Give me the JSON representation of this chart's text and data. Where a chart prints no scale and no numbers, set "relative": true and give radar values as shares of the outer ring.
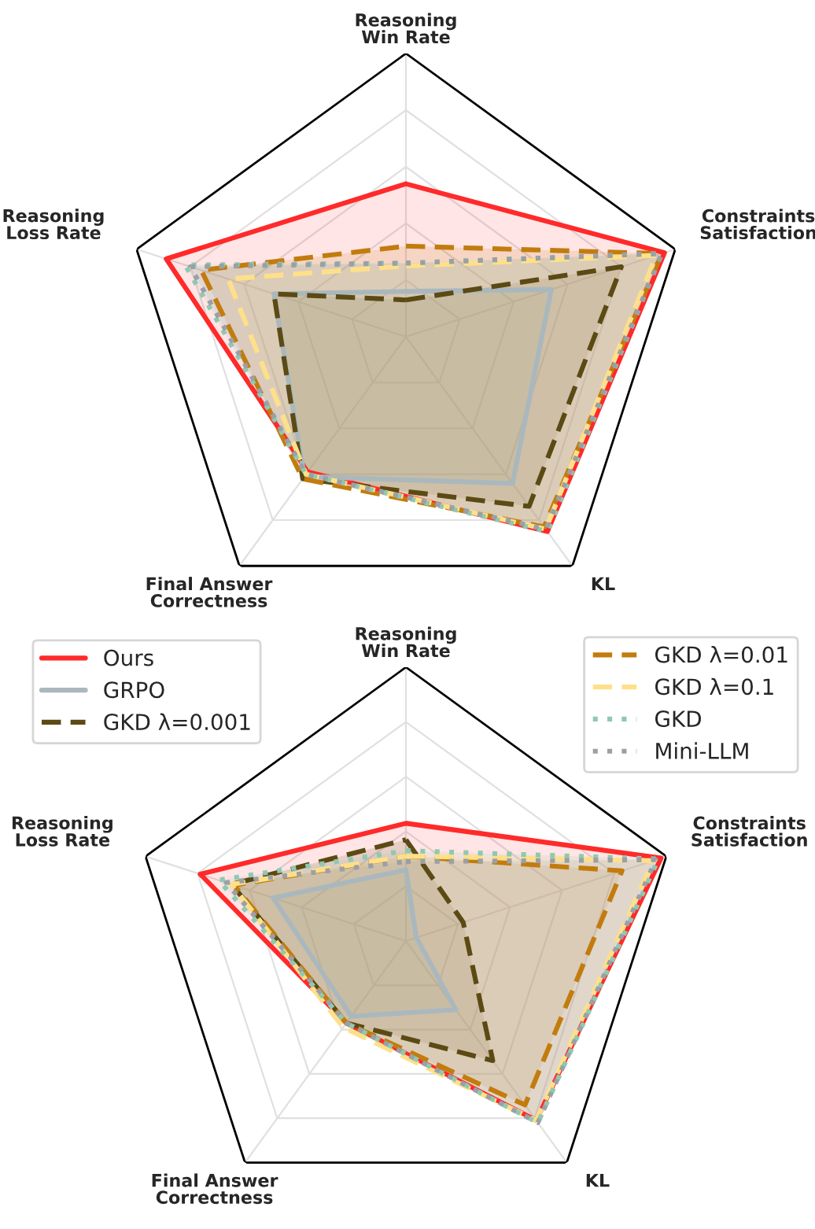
{
  "chart_data": [
    {
      "type": "radar",
      "relative": true,
      "grid": true,
      "legend": "bottom",
      "categories": [
        "Reasoning\nWin Rate",
        "Constraints\nSatisfaction",
        "KL",
        "Final Answer\nCorrectness",
        "Reasoning\nLoss Rate"
      ],
      "series": [
        {
          "name": "Ours",
          "color": "#ff2a2a",
          "line_style": "solid",
          "values": [
            0.54,
            0.96,
            0.85,
            0.59,
            0.89
          ]
        },
        {
          "name": "GRPO",
          "color": "#aab8bd",
          "line_style": "solid",
          "values": [
            0.16,
            0.54,
            0.64,
            0.61,
            0.49
          ]
        },
        {
          "name": "GKD λ=0.001",
          "color": "#5c4a14",
          "line_style": "dashed",
          "values": [
            0.13,
            0.8,
            0.74,
            0.62,
            0.49
          ]
        },
        {
          "name": "GKD λ=0.01",
          "color": "#c27c0e",
          "line_style": "dashed",
          "values": [
            0.32,
            0.95,
            0.83,
            0.62,
            0.76
          ]
        },
        {
          "name": "GKD λ=0.1",
          "color": "#ffe08a",
          "line_style": "dashed",
          "values": [
            0.25,
            0.93,
            0.84,
            0.6,
            0.66
          ]
        },
        {
          "name": "GKD",
          "color": "#8fc9b0",
          "line_style": "dotted",
          "values": [
            0.26,
            0.95,
            0.85,
            0.6,
            0.82
          ]
        },
        {
          "name": "Mini-LLM",
          "color": "#9aa0a6",
          "line_style": "dotted",
          "values": [
            0.26,
            0.95,
            0.84,
            0.6,
            0.8
          ]
        }
      ]
    },
    {
      "type": "radar",
      "relative": true,
      "grid": true,
      "categories": [
        "Reasoning\nWin Rate",
        "Constraints\nSatisfaction",
        "KL",
        "Final Answer\nCorrectness",
        "Reasoning\nLoss Rate"
      ],
      "series": [
        {
          "color": "#ff2a2a",
          "line_style": "solid",
          "values": [
            0.43,
            0.98,
            0.81,
            0.37,
            0.79
          ]
        },
        {
          "color": "#aab8bd",
          "line_style": "solid",
          "values": [
            0.26,
            0.04,
            0.31,
            0.34,
            0.51
          ]
        },
        {
          "color": "#5c4a14",
          "line_style": "dashed",
          "values": [
            0.37,
            0.22,
            0.54,
            0.37,
            0.67
          ]
        },
        {
          "color": "#c27c0e",
          "line_style": "dashed",
          "values": [
            0.31,
            0.83,
            0.74,
            0.37,
            0.66
          ]
        },
        {
          "color": "#ffe08a",
          "line_style": "dashed",
          "values": [
            0.31,
            0.95,
            0.81,
            0.39,
            0.67
          ]
        },
        {
          "color": "#8fc9b0",
          "line_style": "dotted",
          "values": [
            0.33,
            0.97,
            0.82,
            0.37,
            0.72
          ]
        },
        {
          "color": "#9aa0a6",
          "line_style": "dotted",
          "values": [
            0.29,
            0.96,
            0.82,
            0.37,
            0.69
          ]
        }
      ]
    }
  ]
}
